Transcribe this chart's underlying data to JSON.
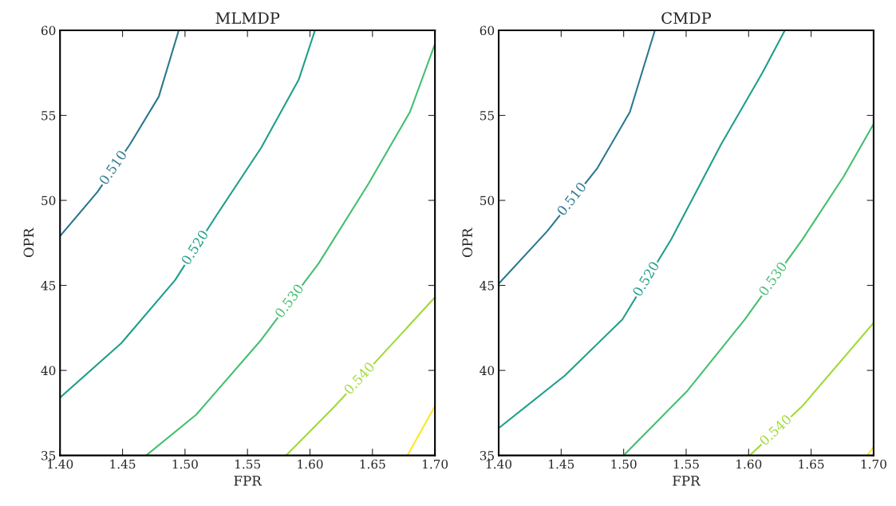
{
  "chart_data": [
    {
      "type": "line",
      "title": "MLMDP",
      "xlabel": "FPR",
      "ylabel": "OPR",
      "grid": false,
      "legend": false,
      "xlim": [
        1.4,
        1.7
      ],
      "ylim": [
        35,
        60
      ],
      "xticks": [
        {
          "value": 1.4,
          "label": "1.40"
        },
        {
          "value": 1.45,
          "label": "1.45"
        },
        {
          "value": 1.5,
          "label": "1.50"
        },
        {
          "value": 1.55,
          "label": "1.55"
        },
        {
          "value": 1.6,
          "label": "1.60"
        },
        {
          "value": 1.65,
          "label": "1.65"
        },
        {
          "value": 1.7,
          "label": "1.70"
        }
      ],
      "yticks": [
        35,
        40,
        45,
        50,
        55,
        60
      ],
      "series": [
        {
          "name": "0.510",
          "color": "#2a788e",
          "x": [
            1.4,
            1.43,
            1.456,
            1.479,
            1.495
          ],
          "values": [
            47.9,
            50.5,
            53.3,
            56.1,
            60
          ]
        },
        {
          "name": "0.520",
          "color": "#1f9e89",
          "x": [
            1.4,
            1.449,
            1.492,
            1.525,
            1.561,
            1.591,
            1.604
          ],
          "values": [
            38.4,
            41.6,
            45.3,
            49.1,
            53.1,
            57.1,
            60
          ]
        },
        {
          "name": "0.530",
          "color": "#44bf70",
          "x": [
            1.469,
            1.509,
            1.561,
            1.607,
            1.647,
            1.68,
            1.7
          ],
          "values": [
            35,
            37.4,
            41.8,
            46.3,
            51.0,
            55.2,
            59.2
          ]
        },
        {
          "name": "0.540",
          "color": "#a0da39",
          "x": [
            1.581,
            1.62,
            1.66,
            1.7
          ],
          "values": [
            35,
            37.9,
            41.1,
            44.3
          ]
        },
        {
          "color": "#fde725",
          "x": [
            1.678,
            1.7
          ],
          "values": [
            35,
            37.9
          ]
        }
      ]
    },
    {
      "type": "line",
      "title": "CMDP",
      "xlabel": "FPR",
      "ylabel": "OPR",
      "grid": false,
      "legend": false,
      "xlim": [
        1.4,
        1.7
      ],
      "ylim": [
        35,
        60
      ],
      "xticks": [
        {
          "value": 1.4,
          "label": "1.40"
        },
        {
          "value": 1.45,
          "label": "1.45"
        },
        {
          "value": 1.5,
          "label": "1.50"
        },
        {
          "value": 1.55,
          "label": "1.55"
        },
        {
          "value": 1.6,
          "label": "1.60"
        },
        {
          "value": 1.65,
          "label": "1.65"
        },
        {
          "value": 1.7,
          "label": "1.70"
        }
      ],
      "yticks": [
        35,
        40,
        45,
        50,
        55,
        60
      ],
      "series": [
        {
          "name": "0.510",
          "color": "#2a788e",
          "x": [
            1.4,
            1.439,
            1.479,
            1.505,
            1.525
          ],
          "values": [
            45.1,
            48.2,
            51.9,
            55.2,
            60
          ]
        },
        {
          "name": "0.520",
          "color": "#1f9e89",
          "x": [
            1.4,
            1.453,
            1.499,
            1.538,
            1.578,
            1.611,
            1.629
          ],
          "values": [
            36.6,
            39.7,
            43.0,
            47.7,
            53.3,
            57.5,
            60
          ]
        },
        {
          "name": "0.530",
          "color": "#44bf70",
          "x": [
            1.5,
            1.551,
            1.597,
            1.643,
            1.676,
            1.7
          ],
          "values": [
            35,
            38.8,
            43.0,
            47.7,
            51.4,
            54.5
          ]
        },
        {
          "name": "0.540",
          "color": "#a0da39",
          "x": [
            1.601,
            1.643,
            1.7
          ],
          "values": [
            35,
            37.9,
            42.8
          ]
        },
        {
          "color": "#fde725",
          "x": [
            1.695,
            1.7
          ],
          "values": [
            35,
            35.5
          ]
        }
      ]
    }
  ]
}
